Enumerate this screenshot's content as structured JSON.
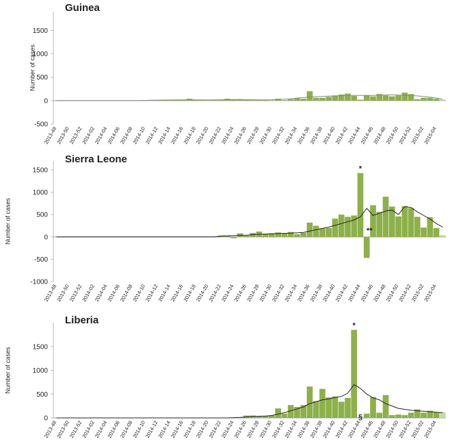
{
  "chart_data": [
    {
      "type": "bar",
      "title": "Guinea",
      "y_label": "Number of cases",
      "categories": [
        "2013-48",
        null,
        "2013-50",
        null,
        "2013-52",
        null,
        "2014-02",
        null,
        "2014-04",
        null,
        "2014-06",
        null,
        "2014-08",
        null,
        "2014-10",
        null,
        "2014-12",
        null,
        "2014-14",
        null,
        "2014-16",
        null,
        "2014-18",
        null,
        "2014-20",
        null,
        "2014-22",
        null,
        "2014-24",
        null,
        "2014-26",
        null,
        "2014-28",
        null,
        "2014-30",
        null,
        "2014-32",
        null,
        "2014-34",
        null,
        "2014-36",
        null,
        "2014-38",
        null,
        "2014-40",
        null,
        "2014-42",
        null,
        "2014-44",
        null,
        "2014-46",
        null,
        "2014-48",
        null,
        "2014-50",
        null,
        "2014-52",
        null,
        "2015-02",
        null,
        "2015-04",
        null
      ],
      "series": [
        {
          "color": "#8db04a",
          "last_color": "#c6dc9c",
          "values": [
            0,
            0,
            0,
            0,
            0,
            0,
            0,
            0,
            0,
            0,
            2,
            0,
            2,
            3,
            5,
            10,
            15,
            20,
            10,
            15,
            20,
            40,
            15,
            10,
            5,
            10,
            20,
            40,
            20,
            30,
            15,
            10,
            20,
            10,
            5,
            40,
            10,
            30,
            50,
            40,
            200,
            60,
            60,
            80,
            110,
            130,
            150,
            100,
            20,
            110,
            90,
            140,
            110,
            90,
            110,
            170,
            140,
            30,
            60,
            60,
            40,
            20
          ]
        },
        {
          "type": "line",
          "color": "#888888",
          "values": [
            0,
            0,
            0,
            0,
            0,
            0,
            0,
            0,
            0,
            0,
            0,
            0,
            0,
            0,
            5,
            8,
            10,
            12,
            13,
            15,
            17,
            18,
            17,
            15,
            14,
            15,
            18,
            20,
            22,
            22,
            20,
            18,
            17,
            16,
            18,
            25,
            30,
            40,
            55,
            65,
            75,
            85,
            90,
            95,
            100,
            105,
            110,
            110,
            110,
            110,
            110,
            115,
            120,
            120,
            120,
            115,
            110,
            100,
            90,
            75,
            55,
            30
          ]
        }
      ],
      "ylim": [
        -500,
        1900
      ],
      "yticks": [
        -500,
        0,
        500,
        1000,
        1500
      ],
      "annotations": []
    },
    {
      "type": "bar",
      "title": "Sierra Leone",
      "y_label": "Number of cases",
      "categories": [
        "2013-48",
        null,
        "2013-50",
        null,
        "2013-52",
        null,
        "2014-02",
        null,
        "2014-04",
        null,
        "2014-06",
        null,
        "2014-08",
        null,
        "2014-10",
        null,
        "2014-12",
        null,
        "2014-14",
        null,
        "2014-16",
        null,
        "2014-18",
        null,
        "2014-20",
        null,
        "2014-22",
        null,
        "2014-24",
        null,
        "2014-26",
        null,
        "2014-28",
        null,
        "2014-30",
        null,
        "2014-32",
        null,
        "2014-34",
        null,
        "2014-36",
        null,
        "2014-38",
        null,
        "2014-40",
        null,
        "2014-42",
        null,
        "2014-44",
        null,
        "2014-46",
        null,
        "2014-48",
        null,
        "2014-50",
        null,
        "2014-52",
        null,
        "2015-02",
        null,
        "2015-04",
        null
      ],
      "series": [
        {
          "color": "#8db04a",
          "last_color": "#c6dc9c",
          "values": [
            0,
            0,
            0,
            0,
            0,
            0,
            0,
            0,
            0,
            0,
            0,
            0,
            0,
            0,
            0,
            0,
            0,
            0,
            0,
            0,
            0,
            0,
            0,
            0,
            0,
            0,
            30,
            20,
            -30,
            80,
            30,
            90,
            120,
            60,
            80,
            100,
            80,
            110,
            60,
            90,
            320,
            250,
            190,
            200,
            410,
            500,
            450,
            480,
            1430,
            -470,
            710,
            560,
            900,
            680,
            460,
            690,
            650,
            450,
            210,
            440,
            200,
            40
          ]
        },
        {
          "type": "line",
          "color": "#222222",
          "values": [
            0,
            0,
            0,
            0,
            0,
            0,
            0,
            0,
            0,
            0,
            0,
            0,
            0,
            0,
            0,
            0,
            0,
            0,
            0,
            0,
            0,
            0,
            0,
            0,
            0,
            0,
            20,
            25,
            30,
            35,
            40,
            50,
            60,
            65,
            70,
            75,
            80,
            85,
            90,
            100,
            130,
            160,
            190,
            220,
            260,
            300,
            340,
            380,
            450,
            640,
            480,
            530,
            580,
            600,
            500,
            680,
            660,
            560,
            480,
            400,
            300,
            220
          ]
        }
      ],
      "ylim": [
        -1000,
        1700
      ],
      "yticks": [
        -1000,
        -500,
        0,
        500,
        1000,
        1500
      ],
      "annotations": [
        "*",
        "**"
      ]
    },
    {
      "type": "bar",
      "title": "Liberia",
      "y_label": "Number of cases",
      "categories": [
        "2013-48",
        null,
        "2013-50",
        null,
        "2013-52",
        null,
        "2014-02",
        null,
        "2014-04",
        null,
        "2014-06",
        null,
        "2014-08",
        null,
        "2014-10",
        null,
        "2014-12",
        null,
        "2014-14",
        null,
        "2014-16",
        null,
        "2014-18",
        null,
        "2014-20",
        null,
        "2014-22",
        null,
        "2014-24",
        null,
        "2014-26",
        null,
        "2014-28",
        null,
        "2014-30",
        null,
        "2014-32",
        null,
        "2014-34",
        null,
        "2014-36",
        null,
        "2014-38",
        null,
        "2014-40",
        null,
        "2014-42",
        null,
        "2014-44",
        null,
        "2014-46",
        null,
        "2014-48",
        null,
        "2014-50",
        null,
        "2014-52",
        null,
        "2015-02",
        null,
        "2015-04",
        null
      ],
      "series": [
        {
          "color": "#8db04a",
          "last_color": "#c6dc9c",
          "values": [
            0,
            0,
            0,
            0,
            0,
            0,
            0,
            0,
            0,
            0,
            0,
            0,
            0,
            0,
            0,
            0,
            0,
            0,
            0,
            0,
            0,
            0,
            0,
            0,
            0,
            0,
            0,
            0,
            10,
            10,
            50,
            50,
            30,
            40,
            50,
            200,
            90,
            270,
            230,
            270,
            660,
            350,
            610,
            430,
            450,
            340,
            420,
            1850,
            0,
            90,
            440,
            110,
            480,
            60,
            70,
            60,
            110,
            180,
            110,
            150,
            120,
            120
          ]
        },
        {
          "type": "line",
          "color": "#222222",
          "values": [
            0,
            0,
            0,
            0,
            0,
            0,
            0,
            0,
            0,
            0,
            0,
            0,
            0,
            0,
            0,
            0,
            0,
            0,
            0,
            0,
            0,
            0,
            0,
            0,
            0,
            0,
            0,
            0,
            5,
            10,
            20,
            30,
            35,
            40,
            50,
            80,
            110,
            150,
            190,
            230,
            300,
            340,
            380,
            400,
            430,
            450,
            520,
            700,
            620,
            500,
            420,
            380,
            300,
            250,
            200,
            180,
            160,
            150,
            140,
            130,
            120,
            110
          ]
        }
      ],
      "ylim": [
        0,
        2000
      ],
      "yticks": [
        0,
        500,
        1000,
        1500
      ],
      "annotations": [
        "*",
        "§"
      ]
    }
  ]
}
